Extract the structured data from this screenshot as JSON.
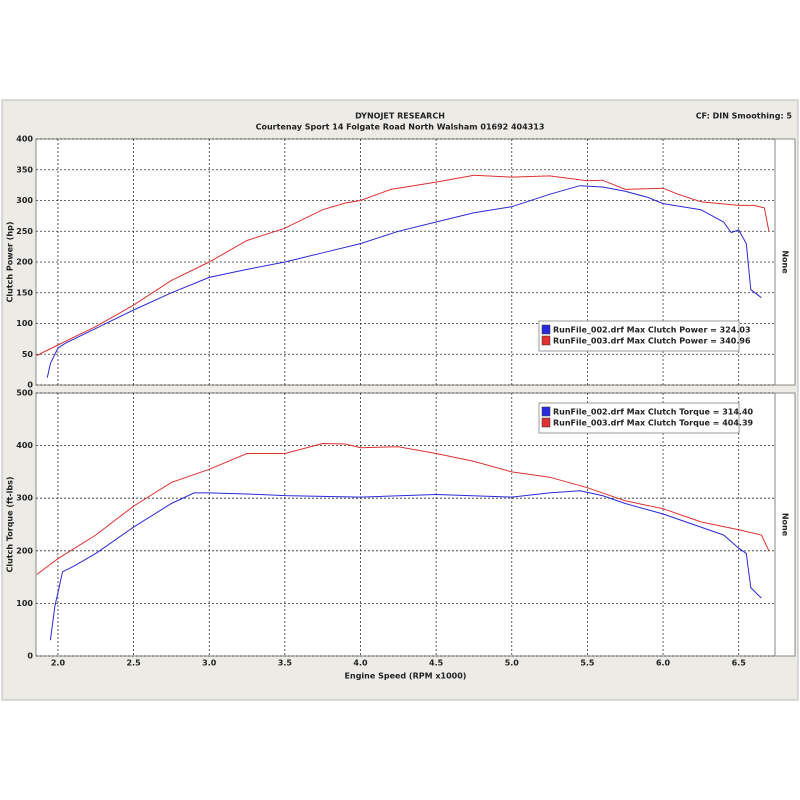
{
  "header": {
    "title": "DYNOJET RESEARCH",
    "subtitle": "Courtenay Sport 14 Folgate Road North Walsham 01692 404313",
    "settings": "CF: DIN  Smoothing: 5"
  },
  "chart_data": [
    {
      "type": "line",
      "ylabel": "Clutch Power (hp)",
      "right_label": "None",
      "legend": "lower right",
      "grid": true,
      "xlim": [
        1.855,
        6.74
      ],
      "xticks": [
        2,
        2.5,
        3,
        3.5,
        4,
        4.5,
        5,
        5.5,
        6,
        6.5
      ],
      "ylim": [
        0,
        400
      ],
      "yticks": [
        0,
        50,
        100,
        150,
        200,
        250,
        300,
        350,
        400
      ],
      "series": [
        {
          "name": "RunFile_002.drf Max Clutch Power = 324.03",
          "color": "#2a2adc",
          "x": [
            1.93,
            1.95,
            2.0,
            2.05,
            2.25,
            2.5,
            2.75,
            3.0,
            3.25,
            3.5,
            3.75,
            4.0,
            4.25,
            4.5,
            4.75,
            5.0,
            5.25,
            5.45,
            5.6,
            5.75,
            5.9,
            6.0,
            6.25,
            6.4,
            6.45,
            6.5,
            6.55,
            6.58,
            6.65
          ],
          "values": [
            12,
            35,
            60,
            68,
            92,
            122,
            150,
            175,
            188,
            200,
            215,
            230,
            250,
            265,
            280,
            290,
            310,
            324,
            322,
            315,
            305,
            295,
            285,
            265,
            248,
            252,
            230,
            155,
            142
          ]
        },
        {
          "name": "RunFile_003.drf Max Clutch Power = 340.96",
          "color": "#e03030",
          "x": [
            1.86,
            2.0,
            2.25,
            2.5,
            2.75,
            3.0,
            3.25,
            3.5,
            3.75,
            3.9,
            4.0,
            4.2,
            4.5,
            4.75,
            5.0,
            5.25,
            5.5,
            5.6,
            5.75,
            6.0,
            6.1,
            6.25,
            6.5,
            6.6,
            6.67,
            6.7
          ],
          "values": [
            48,
            65,
            95,
            130,
            170,
            200,
            235,
            255,
            285,
            296,
            300,
            318,
            330,
            341,
            338,
            340,
            332,
            333,
            318,
            320,
            310,
            298,
            292,
            292,
            288,
            250
          ]
        }
      ]
    },
    {
      "type": "line",
      "xlabel": "Engine Speed (RPM x1000)",
      "ylabel": "Clutch Torque (ft-lbs)",
      "right_label": "None",
      "legend": "upper right",
      "grid": true,
      "xlim": [
        1.855,
        6.74
      ],
      "xticks": [
        {
          "value": 2,
          "label": "2.0"
        },
        2.5,
        {
          "value": 3,
          "label": "3.0"
        },
        3.5,
        {
          "value": 4,
          "label": "4.0"
        },
        4.5,
        {
          "value": 5,
          "label": "5.0"
        },
        5.5,
        {
          "value": 6,
          "label": "6.0"
        },
        6.5
      ],
      "ylim": [
        0,
        500
      ],
      "yticks": [
        0,
        100,
        200,
        300,
        400,
        500
      ],
      "series": [
        {
          "name": "RunFile_002.drf Max Clutch Torque = 314.40",
          "color": "#2a2adc",
          "x": [
            1.95,
            1.98,
            2.0,
            2.03,
            2.1,
            2.25,
            2.5,
            2.75,
            2.9,
            3.0,
            3.25,
            3.5,
            4.0,
            4.5,
            5.0,
            5.25,
            5.45,
            5.6,
            5.75,
            6.0,
            6.25,
            6.4,
            6.5,
            6.55,
            6.58,
            6.65
          ],
          "values": [
            30,
            95,
            120,
            160,
            170,
            195,
            245,
            290,
            310,
            310,
            308,
            305,
            302,
            307,
            302,
            310,
            314,
            305,
            290,
            270,
            245,
            230,
            205,
            195,
            130,
            110
          ]
        },
        {
          "name": "RunFile_003.drf Max Clutch Torque = 404.39",
          "color": "#e03030",
          "x": [
            1.86,
            2.0,
            2.25,
            2.5,
            2.75,
            3.0,
            3.25,
            3.5,
            3.75,
            3.9,
            4.0,
            4.25,
            4.5,
            4.75,
            5.0,
            5.25,
            5.5,
            5.75,
            6.0,
            6.25,
            6.5,
            6.65,
            6.7
          ],
          "values": [
            155,
            185,
            230,
            285,
            330,
            355,
            385,
            385,
            404,
            403,
            396,
            398,
            385,
            370,
            350,
            340,
            320,
            295,
            280,
            255,
            240,
            230,
            200
          ]
        }
      ]
    }
  ]
}
